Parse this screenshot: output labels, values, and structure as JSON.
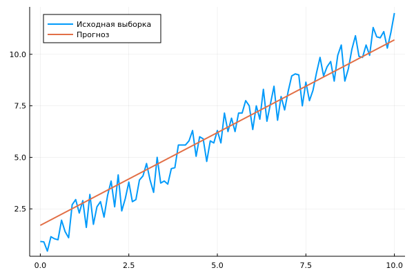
{
  "chart_data": {
    "type": "line",
    "title": "",
    "xlabel": "",
    "ylabel": "",
    "xlim": [
      -0.3,
      10.3
    ],
    "ylim": [
      0.2,
      12.3
    ],
    "grid": true,
    "legend_position": "top-left",
    "x_ticks": [
      {
        "value": 0.0,
        "label": "0.0"
      },
      {
        "value": 2.5,
        "label": "2.5"
      },
      {
        "value": 5.0,
        "label": "5.0"
      },
      {
        "value": 7.5,
        "label": "7.5"
      },
      {
        "value": 10.0,
        "label": "10.0"
      }
    ],
    "y_ticks": [
      {
        "value": 2.5,
        "label": "2.5"
      },
      {
        "value": 5.0,
        "label": "5.0"
      },
      {
        "value": 7.5,
        "label": "7.5"
      },
      {
        "value": 10.0,
        "label": "10.0"
      }
    ],
    "series": [
      {
        "name": "Исходная выборка",
        "color": "#009AFA",
        "x": [
          0.0,
          0.1,
          0.2,
          0.3,
          0.4,
          0.5,
          0.6,
          0.7,
          0.8,
          0.9,
          1.0,
          1.1,
          1.2,
          1.3,
          1.4,
          1.5,
          1.6,
          1.7,
          1.8,
          1.9,
          2.0,
          2.1,
          2.2,
          2.3,
          2.4,
          2.5,
          2.6,
          2.7,
          2.8,
          2.9,
          3.0,
          3.1,
          3.2,
          3.3,
          3.4,
          3.5,
          3.6,
          3.7,
          3.8,
          3.9,
          4.0,
          4.1,
          4.2,
          4.3,
          4.4,
          4.5,
          4.6,
          4.7,
          4.8,
          4.9,
          5.0,
          5.1,
          5.2,
          5.3,
          5.4,
          5.5,
          5.6,
          5.7,
          5.8,
          5.9,
          6.0,
          6.1,
          6.2,
          6.3,
          6.4,
          6.5,
          6.6,
          6.7,
          6.8,
          6.9,
          7.0,
          7.1,
          7.2,
          7.3,
          7.4,
          7.5,
          7.6,
          7.7,
          7.8,
          7.9,
          8.0,
          8.1,
          8.2,
          8.3,
          8.4,
          8.5,
          8.6,
          8.7,
          8.8,
          8.9,
          9.0,
          9.1,
          9.2,
          9.3,
          9.4,
          9.5,
          9.6,
          9.7,
          9.8,
          9.9,
          10.0
        ],
        "y": [
          0.92,
          0.9,
          0.45,
          1.15,
          1.05,
          1.0,
          1.95,
          1.4,
          1.1,
          2.7,
          2.95,
          2.3,
          2.9,
          1.6,
          3.2,
          1.75,
          2.6,
          2.85,
          2.1,
          3.15,
          3.85,
          2.6,
          4.15,
          2.4,
          3.0,
          3.8,
          2.85,
          2.95,
          3.9,
          4.1,
          4.7,
          3.9,
          3.3,
          5.0,
          3.75,
          3.85,
          3.7,
          4.45,
          4.5,
          5.6,
          5.6,
          5.6,
          5.8,
          6.3,
          5.05,
          6.0,
          5.9,
          4.8,
          5.8,
          5.7,
          6.3,
          5.7,
          7.15,
          6.25,
          6.9,
          6.25,
          7.15,
          7.15,
          7.75,
          7.5,
          6.35,
          7.5,
          6.85,
          8.3,
          6.75,
          7.6,
          8.45,
          6.8,
          7.95,
          7.3,
          8.2,
          8.95,
          9.05,
          9.0,
          7.5,
          8.65,
          7.75,
          8.25,
          9.1,
          9.85,
          8.95,
          9.4,
          9.65,
          8.7,
          9.95,
          10.45,
          8.7,
          9.3,
          10.25,
          10.9,
          9.9,
          9.85,
          10.45,
          9.95,
          11.3,
          10.85,
          10.8,
          11.1,
          10.3,
          11.05,
          12.0
        ]
      },
      {
        "name": "Прогноз",
        "color": "#E26F46",
        "x": [
          0.0,
          10.0
        ],
        "y": [
          1.7,
          10.7
        ]
      }
    ]
  }
}
